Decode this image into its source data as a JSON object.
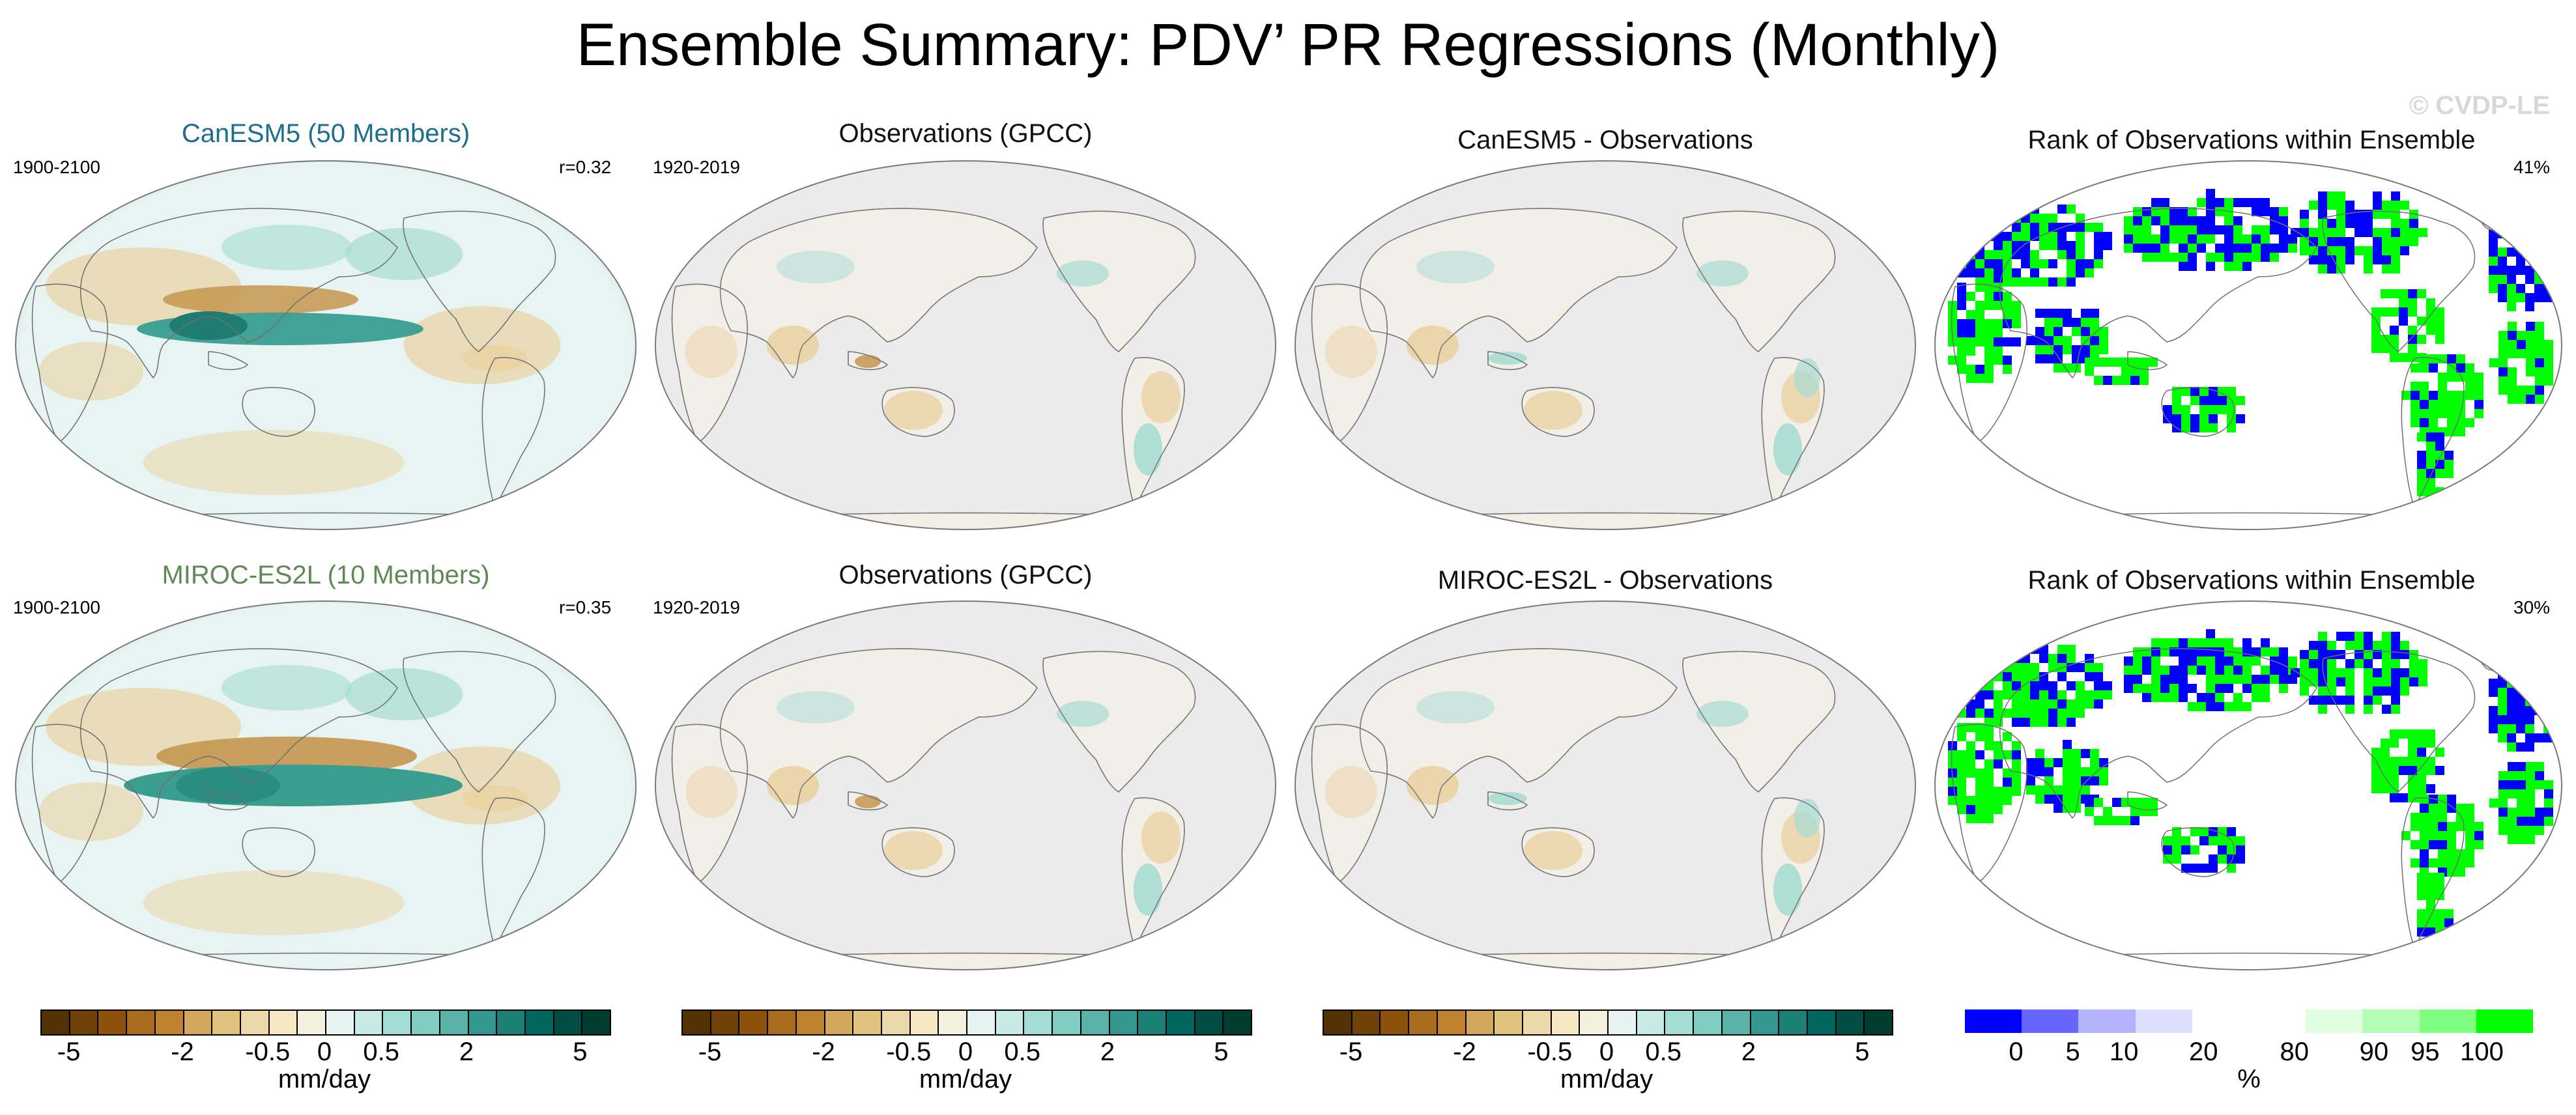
{
  "title": "Ensemble Summary: PDV’ PR Regressions (Monthly)",
  "watermark": "© CVDP-LE",
  "rows": [
    {
      "model": {
        "title": "CanESM5 (50 Members)",
        "title_color": "#1c6e8a",
        "period": "1900-2100",
        "stat": "r=0.32"
      },
      "obs": {
        "title": "Observations (GPCC)",
        "period": "1920-2019"
      },
      "diff": {
        "title": "CanESM5 - Observations"
      },
      "rank": {
        "title": "Rank of Observations within Ensemble",
        "stat": "41%"
      }
    },
    {
      "model": {
        "title": "MIROC-ES2L (10 Members)",
        "title_color": "#5f8a55",
        "period": "1900-2100",
        "stat": "r=0.35"
      },
      "obs": {
        "title": "Observations (GPCC)",
        "period": "1920-2019"
      },
      "diff": {
        "title": "MIROC-ES2L - Observations"
      },
      "rank": {
        "title": "Rank of Observations within Ensemble",
        "stat": "30%"
      }
    }
  ],
  "colorbars": {
    "brbg": {
      "colors": [
        "#543005",
        "#6f4108",
        "#8c510a",
        "#a86b1f",
        "#bf812d",
        "#d4a75e",
        "#dfc27d",
        "#ecd9ab",
        "#f6e8c3",
        "#f5efe0",
        "#e6f3f1",
        "#c7eae5",
        "#a5dcd3",
        "#80cdc1",
        "#5bb2a6",
        "#35978f",
        "#1d7e76",
        "#01665e",
        "#014d44",
        "#003c30"
      ],
      "ticks": [
        "-5",
        "-2",
        "-0.5",
        "0",
        "0.5",
        "2",
        "5"
      ],
      "label": "mm/day"
    },
    "rank": {
      "colors": [
        "#0000ff",
        "#6666ff",
        "#b3b3ff",
        "#dedeff",
        "#ffffff",
        "#ffffff",
        "#e0ffe0",
        "#b3ffb3",
        "#80ff80",
        "#00ff00"
      ],
      "ticks": [
        "0",
        "5",
        "10",
        "20",
        "80",
        "90",
        "95",
        "100"
      ],
      "label": "%"
    }
  },
  "map_colors": {
    "ocean": "#ebebeb",
    "land_neutral": "#f2efe8",
    "brown": "#c69a55",
    "light_brown": "#ead2a3",
    "teal": "#3a9d90",
    "light_teal": "#a7dcd3",
    "blue": "#0000ff",
    "green": "#00ff00",
    "white": "#ffffff"
  },
  "legend_units": {
    "precip": "mm/day",
    "rank": "%"
  }
}
